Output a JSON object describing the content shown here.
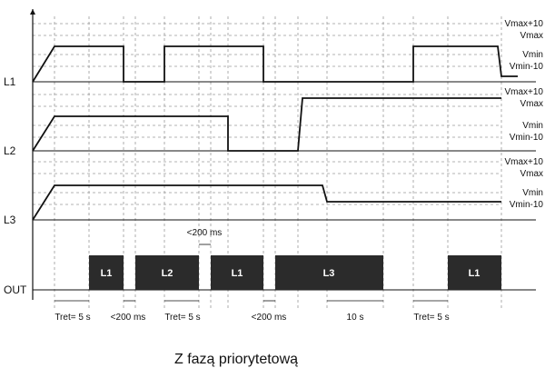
{
  "channels": [
    {
      "id": "L1",
      "label": "L1",
      "levels": [
        "Vmax+10",
        "Vmax",
        "Vmin",
        "Vmin-10"
      ]
    },
    {
      "id": "L2",
      "label": "L2",
      "levels": [
        "Vmax+10",
        "Vmax",
        "Vmin",
        "Vmin-10"
      ]
    },
    {
      "id": "L3",
      "label": "L3",
      "levels": [
        "Vmax+10",
        "Vmax",
        "Vmin",
        "Vmin-10"
      ]
    }
  ],
  "output": {
    "label": "OUT",
    "blocks": [
      "L1",
      "L2",
      "L1",
      "L3",
      "L1"
    ]
  },
  "annotations": {
    "gap_top": "<200 ms",
    "bottom": [
      "Tret= 5 s",
      "<200 ms",
      "Tret= 5 s",
      "<200 ms",
      "10 s",
      "Tret= 5 s"
    ]
  },
  "caption": "Z fazą priorytetową",
  "colors": {
    "line": "#111111",
    "grid": "#9a9a9a",
    "block": "#2b2b2b",
    "block_text": "#ffffff"
  }
}
